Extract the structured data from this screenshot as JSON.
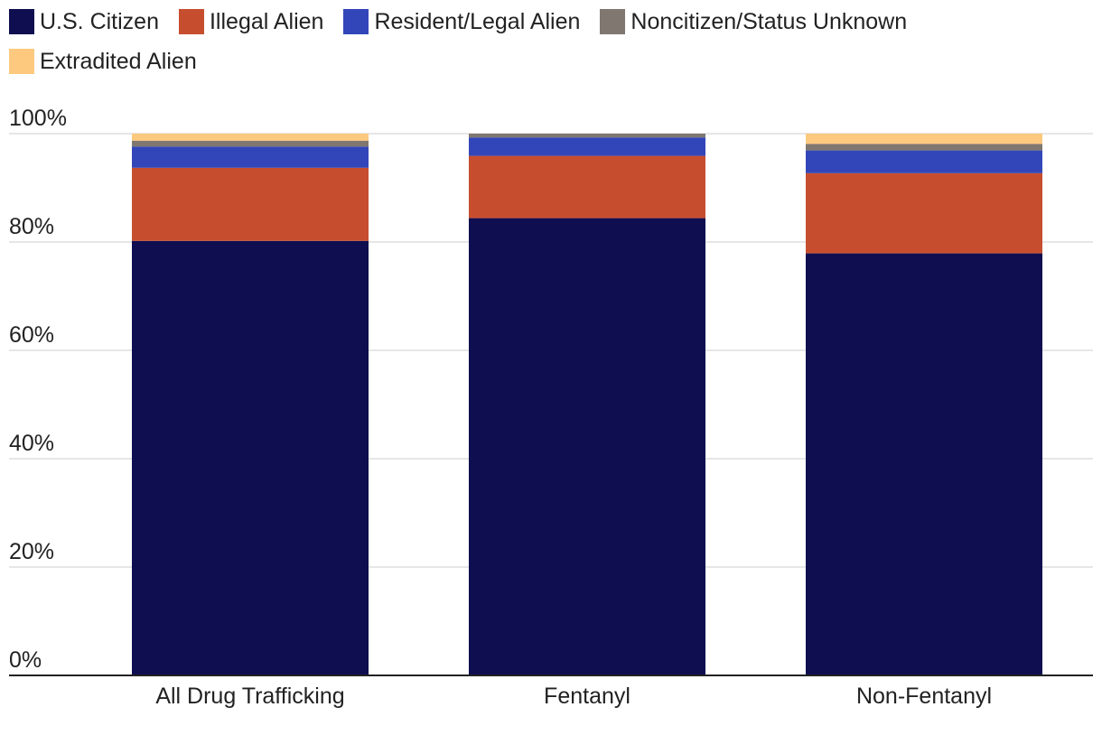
{
  "chart_data": {
    "type": "bar",
    "stacked": true,
    "percent": true,
    "categories": [
      "All Drug Trafficking",
      "Fentanyl",
      "Non-Fentanyl"
    ],
    "series": [
      {
        "name": "U.S. Citizen",
        "color": "#0e0e50",
        "values": [
          80.2,
          84.4,
          77.9
        ]
      },
      {
        "name": "Illegal Alien",
        "color": "#c64e2f",
        "values": [
          13.5,
          11.5,
          14.8
        ]
      },
      {
        "name": "Resident/Legal Alien",
        "color": "#3346b9",
        "values": [
          3.9,
          3.4,
          4.2
        ]
      },
      {
        "name": "Noncitizen/Status Unknown",
        "color": "#7f7770",
        "values": [
          1.1,
          0.7,
          1.2
        ]
      },
      {
        "name": "Extradited Alien",
        "color": "#fcc97f",
        "values": [
          1.3,
          0.0,
          1.9
        ]
      }
    ],
    "y_ticks": [
      "0%",
      "20%",
      "40%",
      "60%",
      "80%",
      "100%"
    ],
    "ylim": [
      0,
      100
    ],
    "title": "",
    "xlabel": "",
    "ylabel": "",
    "grid": true,
    "legend_position": "top-left"
  }
}
